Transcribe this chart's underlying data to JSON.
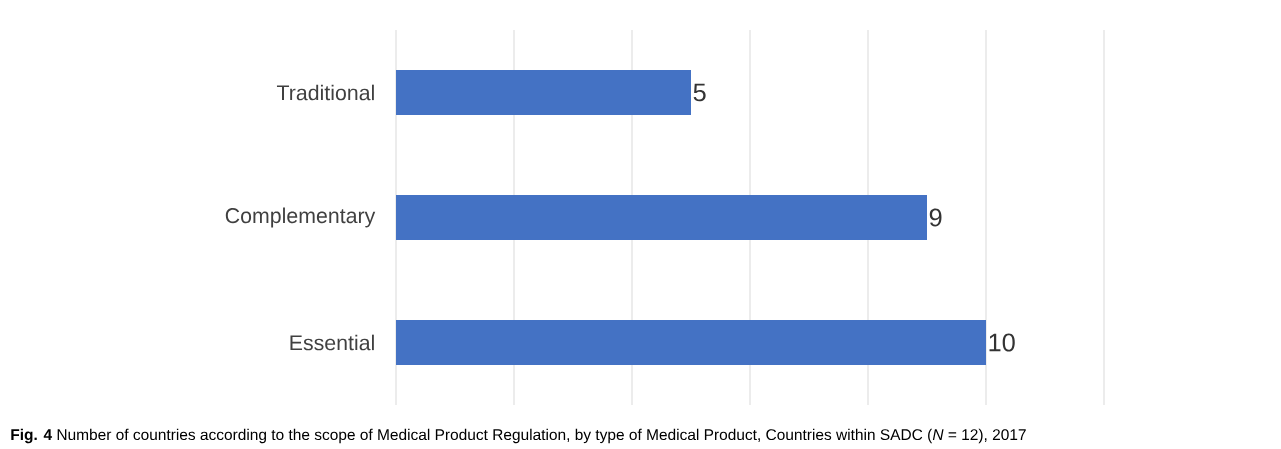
{
  "chart_data": {
    "type": "bar",
    "orientation": "horizontal",
    "categories": [
      "Traditional",
      "Complementary",
      "Essential"
    ],
    "values": [
      5,
      9,
      10
    ],
    "color": "#4472c4",
    "xlim": [
      0,
      12
    ],
    "xticks": [
      {
        "value": 0,
        "label": null
      },
      {
        "value": 2,
        "label": null
      },
      {
        "value": 4,
        "label": null
      },
      {
        "value": 6,
        "label": null
      },
      {
        "value": 8,
        "label": null
      },
      {
        "value": 10,
        "label": null
      },
      {
        "value": 12,
        "label": null
      }
    ],
    "grid": "x",
    "tick_labels": "y",
    "data_labels": true,
    "annotations": [
      "**Fig. 4** Number of countries according to the scope of Medical Product Regulation, by type of Medical Product, Countries within SADC (*N* = 12), 2017"
    ]
  }
}
